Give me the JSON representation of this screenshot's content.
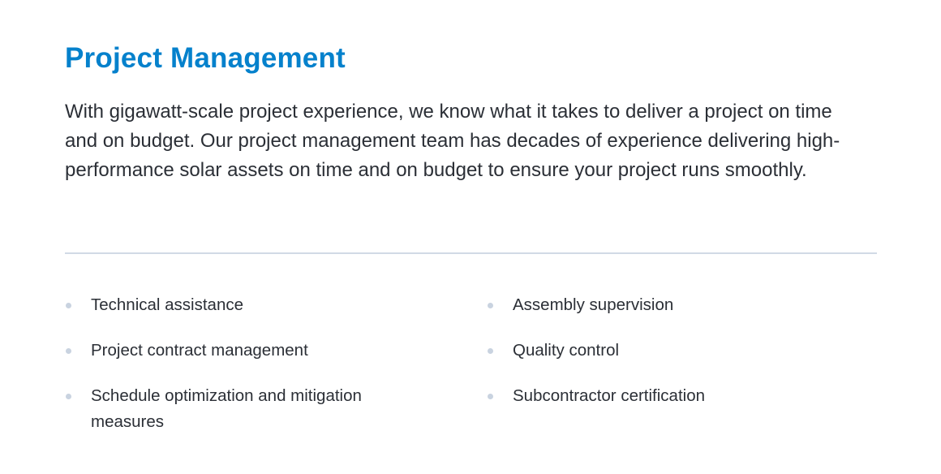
{
  "section": {
    "title": "Project Management",
    "intro": "With gigawatt-scale project experience, we know what it takes to deliver a project on time and on budget. Our project management team has decades of experience delivering high-performance solar assets on time and on budget to ensure your project runs smoothly.",
    "services_left": [
      "Technical assistance",
      "Project contract management",
      "Schedule optimization and mitigation measures"
    ],
    "services_right": [
      "Assembly supervision",
      "Quality control",
      "Subcontractor certification"
    ],
    "colors": {
      "heading": "#0581cc",
      "text": "#2b2f36",
      "bullet": "#c9d3e0",
      "divider": "#d1dae5"
    }
  }
}
